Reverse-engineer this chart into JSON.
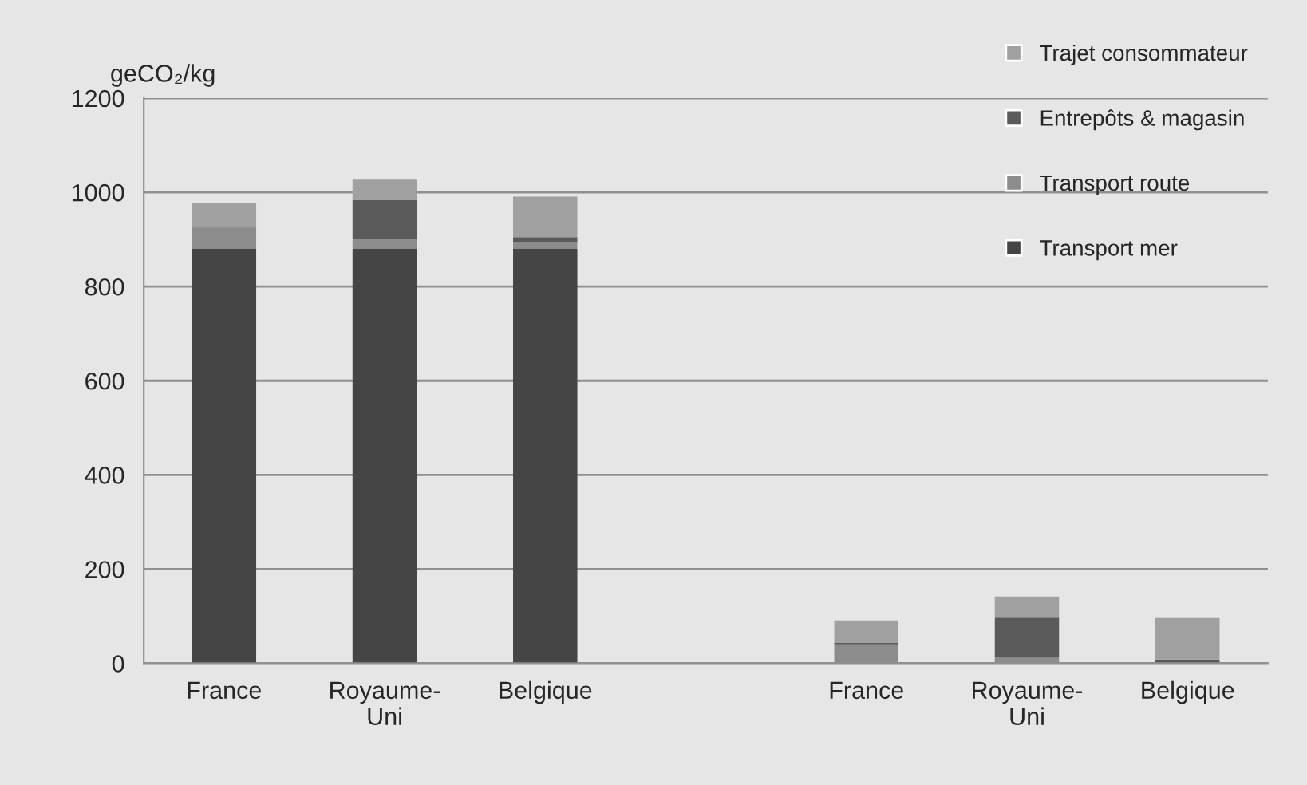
{
  "chart_data": {
    "type": "bar",
    "stacked": true,
    "ylabel": "geCO₂/kg",
    "categories": [
      "France",
      "Royaume-\nUni",
      "Belgique",
      null,
      "France",
      "Royaume-\nUni",
      "Belgique"
    ],
    "series": [
      {
        "name": "Transport mer",
        "color": "#454545",
        "values": [
          880,
          880,
          880,
          0,
          0,
          0,
          0
        ]
      },
      {
        "name": "Transport route",
        "color": "#8c8c8c",
        "values": [
          45,
          20,
          15,
          0,
          40,
          12,
          0
        ]
      },
      {
        "name": "Entrepôts & magasin",
        "color": "#5a5a5a",
        "values": [
          3,
          83,
          10,
          0,
          3,
          85,
          8
        ]
      },
      {
        "name": "Trajet consommateur",
        "color": "#a0a0a0",
        "values": [
          50,
          44,
          86,
          0,
          48,
          45,
          88
        ]
      }
    ],
    "ylim": [
      0,
      1200
    ],
    "yticks": [
      0,
      200,
      400,
      600,
      800,
      1000,
      1200
    ],
    "grid": "y",
    "legend": "top right"
  }
}
